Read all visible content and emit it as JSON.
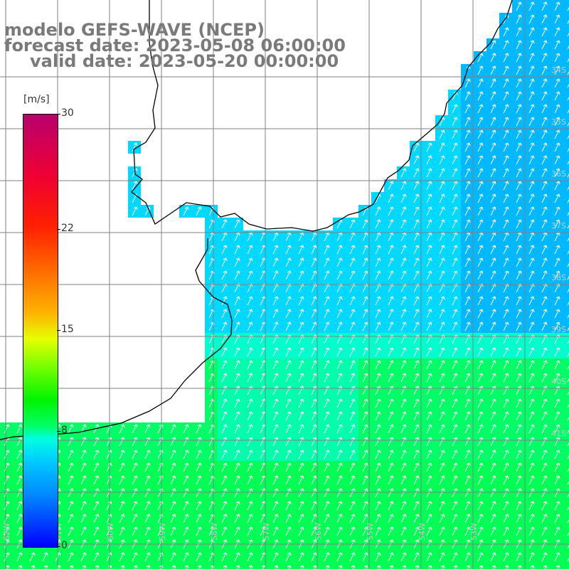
{
  "title": {
    "line1": "modelo GEFS-WAVE (NCEP)",
    "line2": "forecast date: 2023-05-08 06:00:00",
    "line3": "valid date: 2023-05-20 00:00:00"
  },
  "colorbar": {
    "units": "[m/s]",
    "labels": [
      "30",
      "22",
      "15",
      "8",
      "0"
    ],
    "values": [
      30,
      22,
      15,
      8,
      0
    ],
    "range": [
      0,
      30
    ]
  },
  "lat_labels": [
    "34S",
    "35S",
    "36S",
    "37S",
    "38S",
    "39S",
    "40S",
    "41S"
  ],
  "lon_labels": [
    "62W",
    "61W",
    "60W",
    "59W",
    "58W",
    "57W",
    "56W",
    "55W",
    "54W",
    "53W"
  ],
  "colors": {
    "land": "#ffffff",
    "grid": "#808080",
    "coast": "#000000",
    "arrow": "#ffffff",
    "title": "#7a7a7a"
  }
}
